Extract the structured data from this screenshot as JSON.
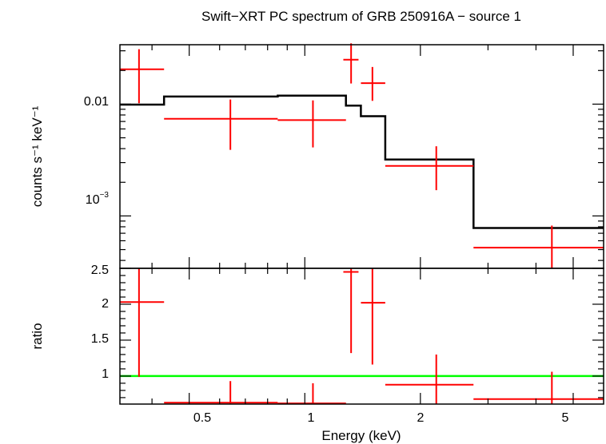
{
  "chart_data": {
    "type": "scatter",
    "title": "Swift−XRT PC spectrum of GRB 250916A − source 1",
    "xlabel": "Energy (keV)",
    "x_scale": "log",
    "xlim": [
      0.33,
      6.0
    ],
    "x_ticks_major": [
      "0.5",
      "1",
      "2",
      "5"
    ],
    "colors": {
      "data": "#ff0000",
      "model": "#000000",
      "unity": "#00ff00",
      "frame": "#000000"
    },
    "panels": [
      {
        "name": "spectrum",
        "ylabel": "counts s⁻¹ keV⁻¹",
        "y_scale": "log",
        "ylim": [
          0.00034,
          0.034
        ],
        "y_tick_labels": [
          "0.01",
          "10⁻³"
        ],
        "series": [
          {
            "kind": "data",
            "points": [
              {
                "x": 0.37,
                "xerr": [
                  0.33,
                  0.43
                ],
                "y": 0.0205,
                "yerr": [
                  0.0102,
                  0.031
                ]
              },
              {
                "x": 0.64,
                "xerr": [
                  0.43,
                  0.85
                ],
                "y": 0.0074,
                "yerr": [
                  0.0039,
                  0.011
                ]
              },
              {
                "x": 1.05,
                "xerr": [
                  0.85,
                  1.28
                ],
                "y": 0.0072,
                "yerr": [
                  0.0041,
                  0.0108
                ]
              },
              {
                "x": 1.32,
                "xerr": [
                  1.26,
                  1.38
                ],
                "y": 0.025,
                "yerr": [
                  0.0153,
                  0.035
                ]
              },
              {
                "x": 1.5,
                "xerr": [
                  1.4,
                  1.62
                ],
                "y": 0.0154,
                "yerr": [
                  0.0107,
                  0.0215
                ]
              },
              {
                "x": 2.2,
                "xerr": [
                  1.62,
                  2.75
                ],
                "y": 0.0028,
                "yerr": [
                  0.0017,
                  0.0042
                ]
              },
              {
                "x": 4.4,
                "xerr": [
                  2.75,
                  6.0
                ],
                "y": 0.00052,
                "yerr": [
                  0.00034,
                  0.00082
                ]
              }
            ]
          },
          {
            "kind": "model",
            "steps": [
              {
                "x0": 0.33,
                "x1": 0.43,
                "y": 0.0099
              },
              {
                "x0": 0.43,
                "x1": 0.85,
                "y": 0.0117
              },
              {
                "x0": 0.85,
                "x1": 1.28,
                "y": 0.0119
              },
              {
                "x0": 1.28,
                "x1": 1.4,
                "y": 0.0097
              },
              {
                "x0": 1.4,
                "x1": 1.62,
                "y": 0.0078
              },
              {
                "x0": 1.62,
                "x1": 2.75,
                "y": 0.0032
              },
              {
                "x0": 2.75,
                "x1": 6.0,
                "y": 0.00078
              }
            ]
          }
        ]
      },
      {
        "name": "ratio",
        "ylabel": "ratio",
        "y_scale": "linear",
        "ylim": [
          0.61,
          2.5
        ],
        "y_tick_labels": [
          "2.5",
          "2",
          "1.5",
          "1"
        ],
        "reference_line": 1,
        "series": [
          {
            "kind": "data",
            "points": [
              {
                "x": 0.37,
                "xerr": [
                  0.33,
                  0.43
                ],
                "y": 2.03,
                "yerr": [
                  0.99,
                  2.5
                ]
              },
              {
                "x": 0.64,
                "xerr": [
                  0.43,
                  0.85
                ],
                "y": 0.63,
                "yerr": [
                  0.61,
                  0.93
                ]
              },
              {
                "x": 1.05,
                "xerr": [
                  0.85,
                  1.28
                ],
                "y": 0.62,
                "yerr": [
                  0.61,
                  0.9
                ]
              },
              {
                "x": 1.32,
                "xerr": [
                  1.26,
                  1.38
                ],
                "y": 2.45,
                "yerr": [
                  1.32,
                  2.5
                ]
              },
              {
                "x": 1.5,
                "xerr": [
                  1.4,
                  1.62
                ],
                "y": 2.02,
                "yerr": [
                  1.16,
                  2.5
                ]
              },
              {
                "x": 2.2,
                "xerr": [
                  1.62,
                  2.75
                ],
                "y": 0.88,
                "yerr": [
                  0.61,
                  1.3
                ]
              },
              {
                "x": 4.4,
                "xerr": [
                  2.75,
                  6.0
                ],
                "y": 0.68,
                "yerr": [
                  0.61,
                  1.06
                ]
              }
            ]
          }
        ]
      }
    ]
  }
}
